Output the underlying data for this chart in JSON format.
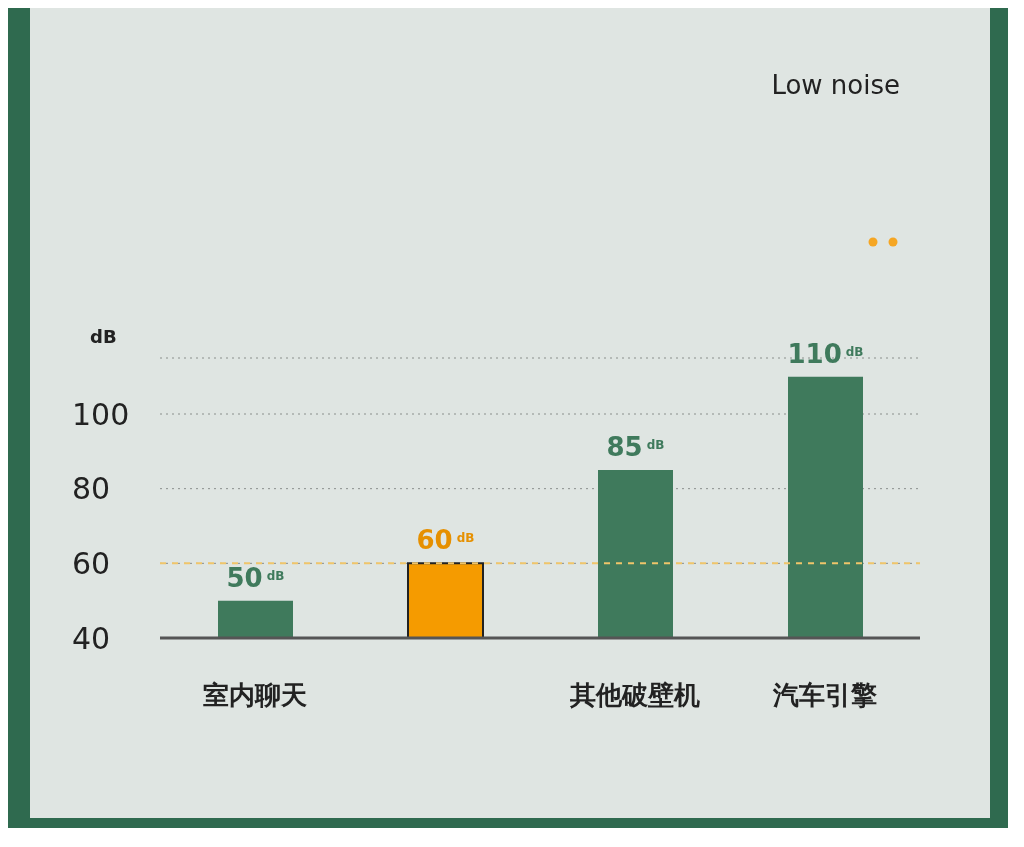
{
  "chart_data": {
    "type": "bar",
    "title": "Low noise",
    "ylabel": "dB",
    "categories": [
      "室内聊天",
      null,
      "其他破壁机",
      "汽车引擎"
    ],
    "values": [
      50,
      60,
      85,
      110
    ],
    "colors": [
      "#3f7a5c",
      "#f59b00",
      "#3f7a5c",
      "#3f7a5c"
    ],
    "value_labels": [
      "50$^{dB}$",
      "60$^{dB}$",
      "85$^{dB}$",
      "110$^{dB}$"
    ],
    "ylim": [
      40,
      115
    ],
    "yticks": [
      40,
      60,
      80,
      100
    ],
    "grid": "y",
    "ref_lines": [
      {
        "axis": "y",
        "value": 60,
        "label": null,
        "color": "#f0c56a",
        "line_style": "dashed"
      }
    ]
  }
}
